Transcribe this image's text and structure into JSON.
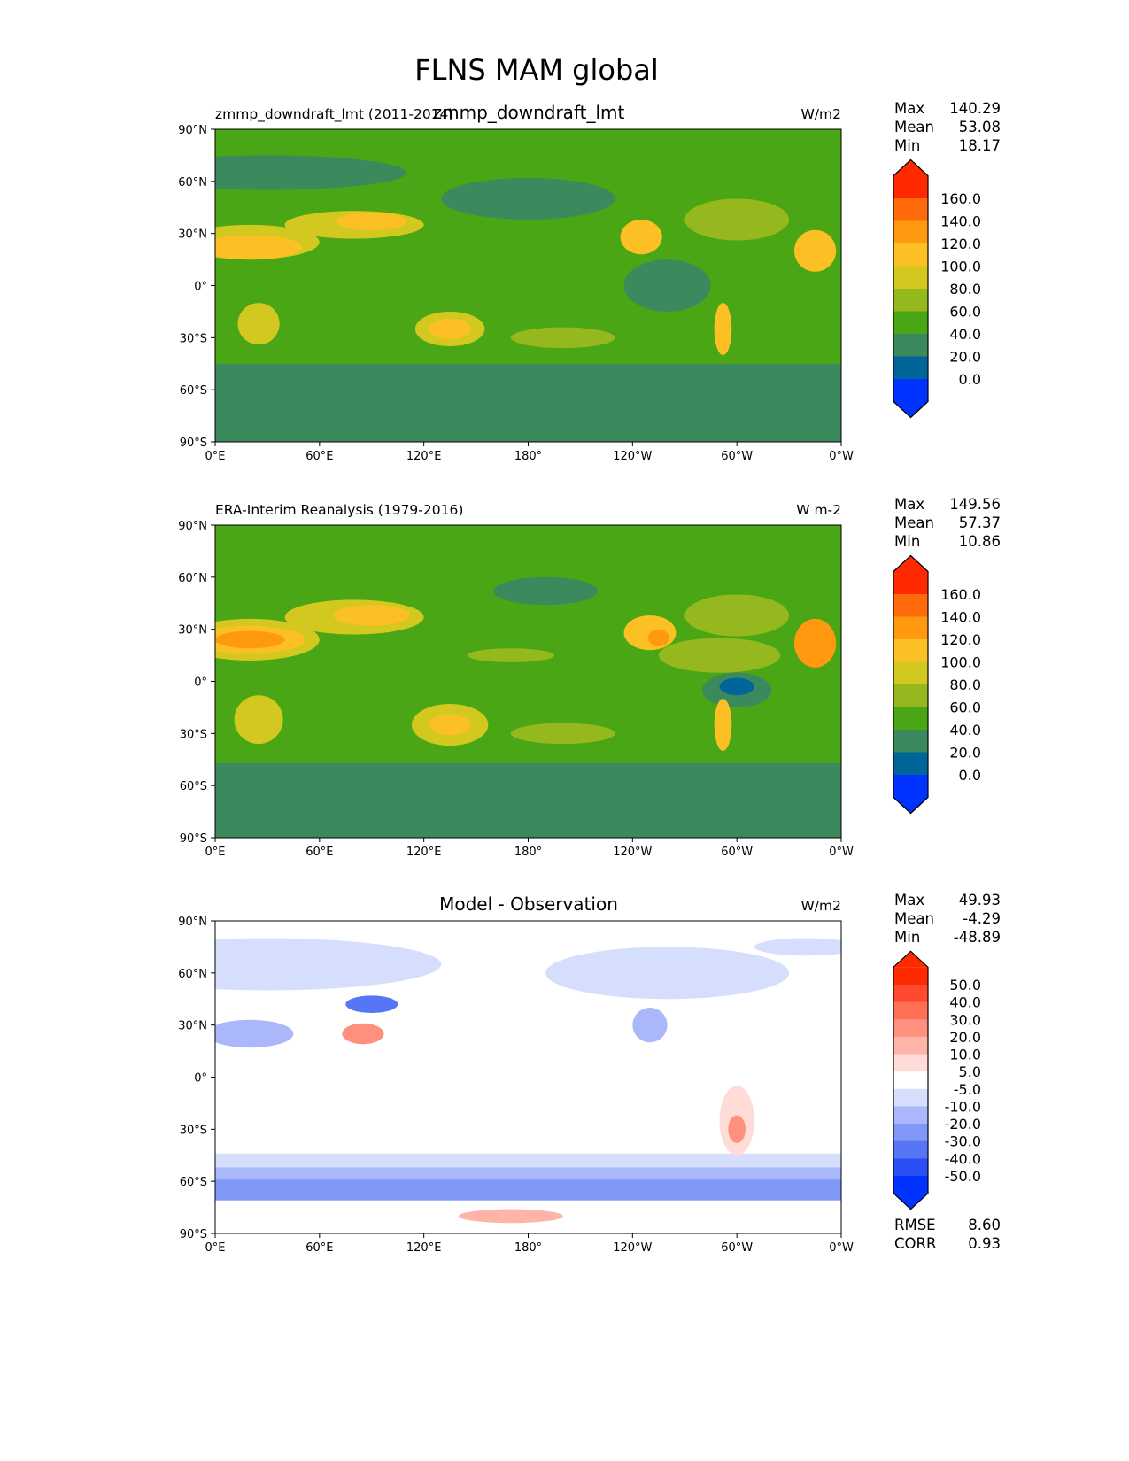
{
  "chart_data": {
    "type": "heatmap",
    "title": "FLNS MAM global",
    "x_ticks": [
      "0°E",
      "60°E",
      "120°E",
      "180°",
      "120°W",
      "60°W",
      "0°W"
    ],
    "y_ticks": [
      "90°N",
      "60°N",
      "30°N",
      "0°",
      "30°S",
      "60°S",
      "90°S"
    ],
    "panels": [
      {
        "left_title": "zmmp_downdraft_lmt (2011-2014)",
        "center_title": "zmmp_downdraft_lmt",
        "units": "W/m2",
        "stats": {
          "max_label": "Max",
          "max": "140.29",
          "mean_label": "Mean",
          "mean": "53.08",
          "min_label": "Min",
          "min": "18.17"
        },
        "colorbar": {
          "levels": [
            "160.0",
            "140.0",
            "120.0",
            "100.0",
            "80.0",
            "60.0",
            "40.0",
            "20.0",
            "0.0"
          ],
          "colors": [
            "#ff2a00",
            "#ff6a0a",
            "#ff9a10",
            "#fcc025",
            "#d2c820",
            "#94b81e",
            "#4aa614",
            "#3a8a5e",
            "#006699",
            "#0033ff"
          ]
        }
      },
      {
        "left_title": "ERA-Interim Reanalysis (1979-2016)",
        "center_title": "",
        "units": "W m-2",
        "stats": {
          "max_label": "Max",
          "max": "149.56",
          "mean_label": "Mean",
          "mean": "57.37",
          "min_label": "Min",
          "min": "10.86"
        },
        "colorbar": {
          "levels": [
            "160.0",
            "140.0",
            "120.0",
            "100.0",
            "80.0",
            "60.0",
            "40.0",
            "20.0",
            "0.0"
          ],
          "colors": [
            "#ff2a00",
            "#ff6a0a",
            "#ff9a10",
            "#fcc025",
            "#d2c820",
            "#94b81e",
            "#4aa614",
            "#3a8a5e",
            "#006699",
            "#0033ff"
          ]
        }
      },
      {
        "left_title": "",
        "center_title": "Model - Observation",
        "units": "W/m2",
        "stats": {
          "max_label": "Max",
          "max": "49.93",
          "mean_label": "Mean",
          "mean": "-4.29",
          "min_label": "Min",
          "min": "-48.89"
        },
        "colorbar": {
          "levels": [
            "50.0",
            "40.0",
            "30.0",
            "20.0",
            "10.0",
            "5.0",
            "-5.0",
            "-10.0",
            "-20.0",
            "-30.0",
            "-40.0",
            "-50.0"
          ],
          "colors": [
            "#ff2a00",
            "#ff4a30",
            "#ff6f55",
            "#ff9080",
            "#ffb4a8",
            "#ffdcd8",
            "#ffffff",
            "#d6defd",
            "#aab8fb",
            "#8098f8",
            "#5676f6",
            "#2a50f5",
            "#0033ff"
          ]
        },
        "metrics": {
          "rmse_label": "RMSE",
          "rmse": "8.60",
          "corr_label": "CORR",
          "corr": "0.93"
        }
      }
    ]
  }
}
